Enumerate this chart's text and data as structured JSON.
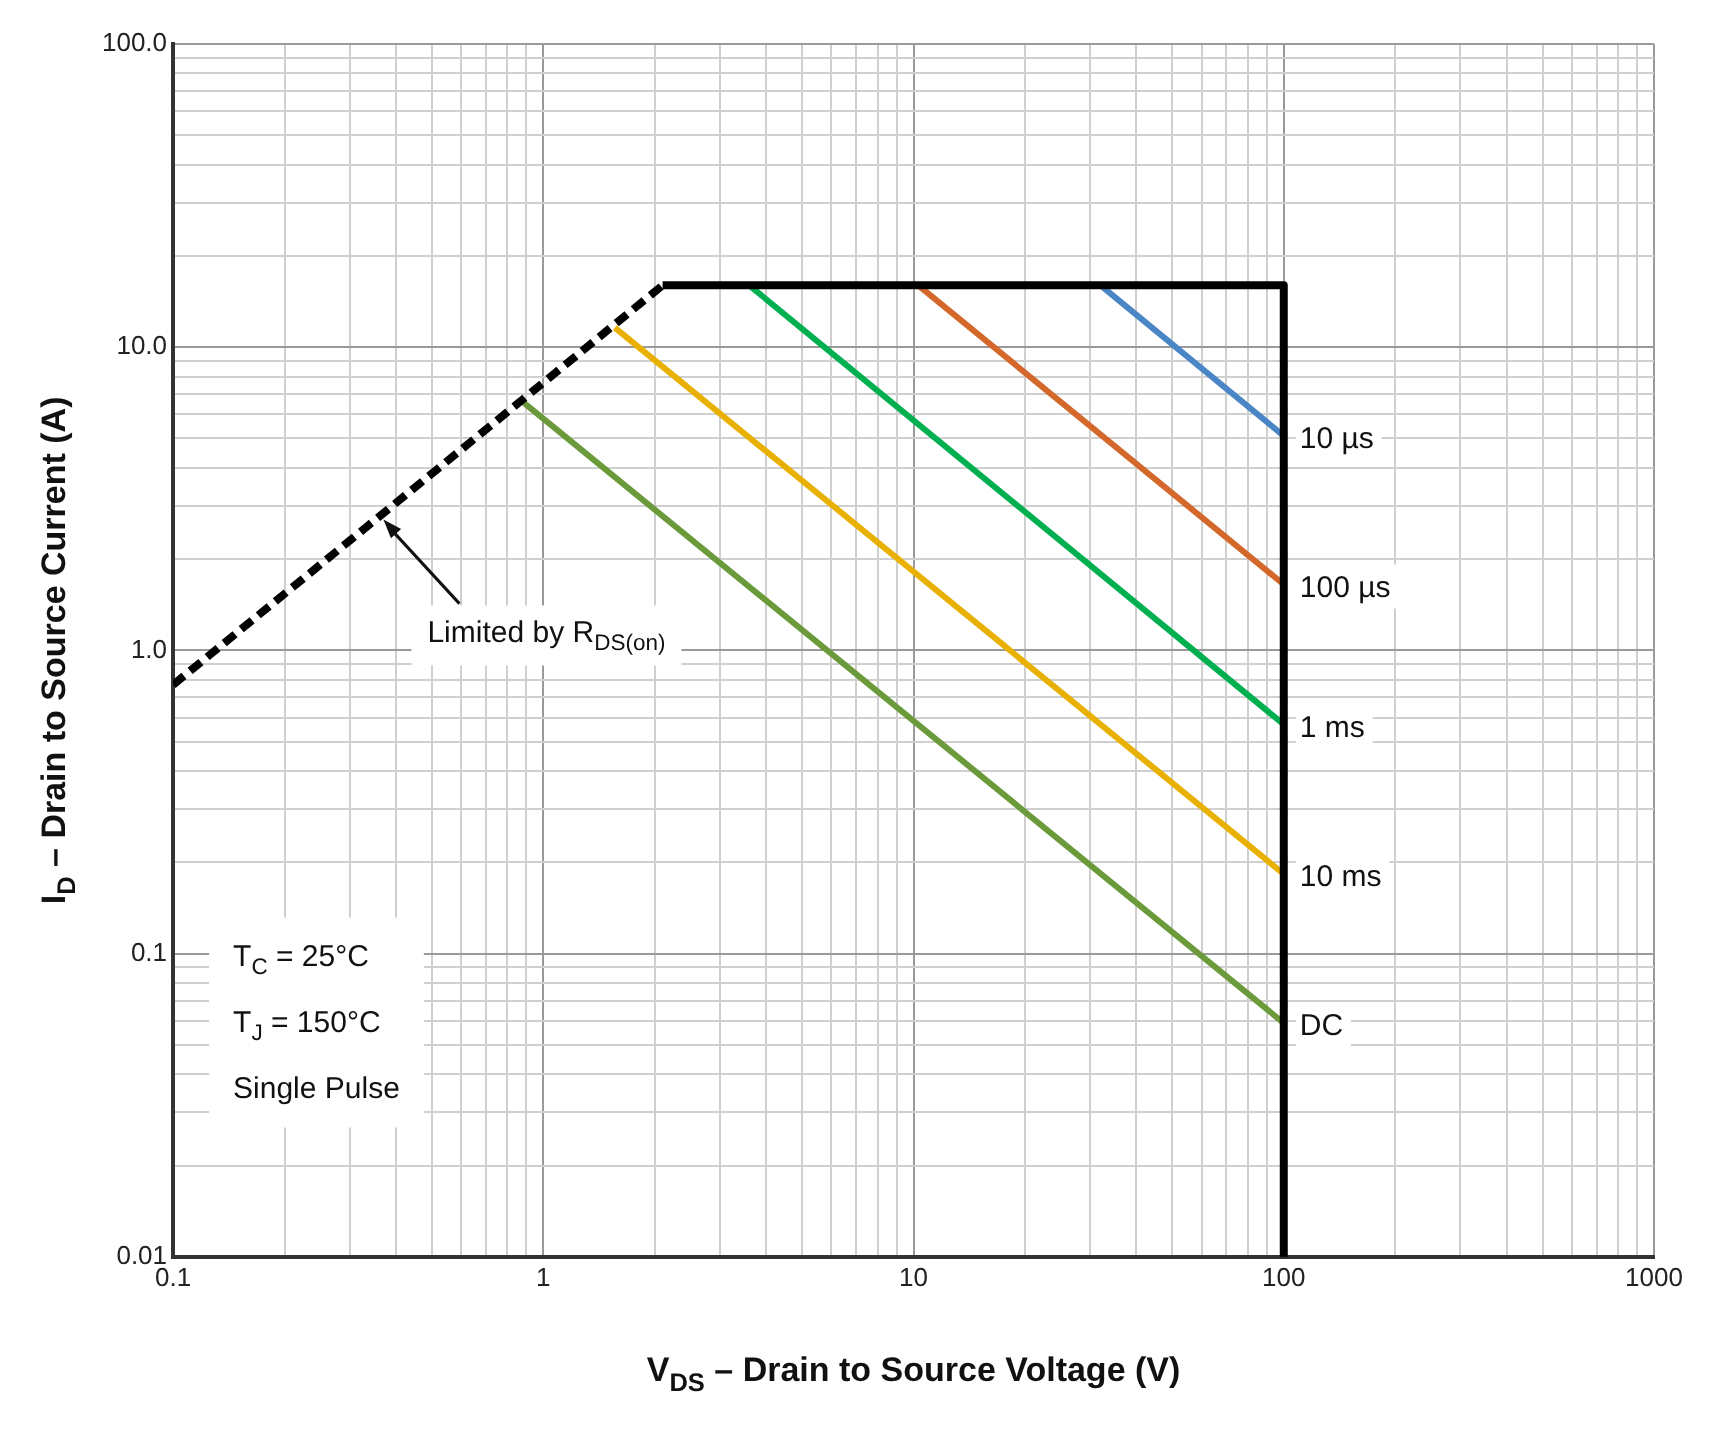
{
  "chart_data": {
    "type": "line",
    "xlabel": "V$_{DS}$ – Drain to Source Voltage (V)",
    "ylabel": "I$_{D}$ – Drain to Source Current (A)",
    "log": "xy",
    "grid": true,
    "legend": false,
    "marker": "none",
    "xlim": [
      0.1,
      1000
    ],
    "xticks": [
      0.1,
      1,
      10,
      100,
      1000
    ],
    "ylim": [
      0.01,
      100
    ],
    "yticks": [
      {
        "value": 0.01,
        "label": "0.01"
      },
      {
        "value": 0.1,
        "label": "0.1"
      },
      {
        "value": 1,
        "label": "1.0"
      },
      {
        "value": 10,
        "label": "10.0"
      },
      {
        "value": 100,
        "label": "100.0"
      }
    ],
    "series": [
      {
        "color": "#000000",
        "line_style": "dashed",
        "x": [
          0.1,
          2.1
        ],
        "values": [
          0.77,
          16
        ]
      },
      {
        "color": "#000000",
        "line_style": "solid",
        "x": [
          2.1,
          100,
          100
        ],
        "values": [
          16,
          16,
          0.01
        ]
      },
      {
        "name": "10 µs",
        "color": "#4a86c5",
        "line_style": "solid",
        "x": [
          32,
          100
        ],
        "values": [
          16,
          5.1
        ]
      },
      {
        "name": "100 µs",
        "color": "#d4682a",
        "line_style": "solid",
        "x": [
          10.3,
          100
        ],
        "values": [
          16,
          1.65
        ]
      },
      {
        "name": "1 ms",
        "color": "#00b050",
        "line_style": "solid",
        "x": [
          3.6,
          100
        ],
        "values": [
          16,
          0.57
        ]
      },
      {
        "name": "10 ms",
        "color": "#e8b000",
        "line_style": "solid",
        "x": [
          1.56,
          100
        ],
        "values": [
          11.6,
          0.183
        ]
      },
      {
        "name": "DC",
        "color": "#6a9a3a",
        "line_style": "solid",
        "x": [
          0.88,
          100
        ],
        "values": [
          6.6,
          0.059
        ]
      }
    ],
    "annotations": [
      {
        "text": "Limited by R$_{DS(on)}$",
        "x": 0.37,
        "y": 2.7
      },
      "T$_{C}$ = 25°C",
      "T$_{J}$ = 150°C",
      "Single Pulse"
    ]
  }
}
